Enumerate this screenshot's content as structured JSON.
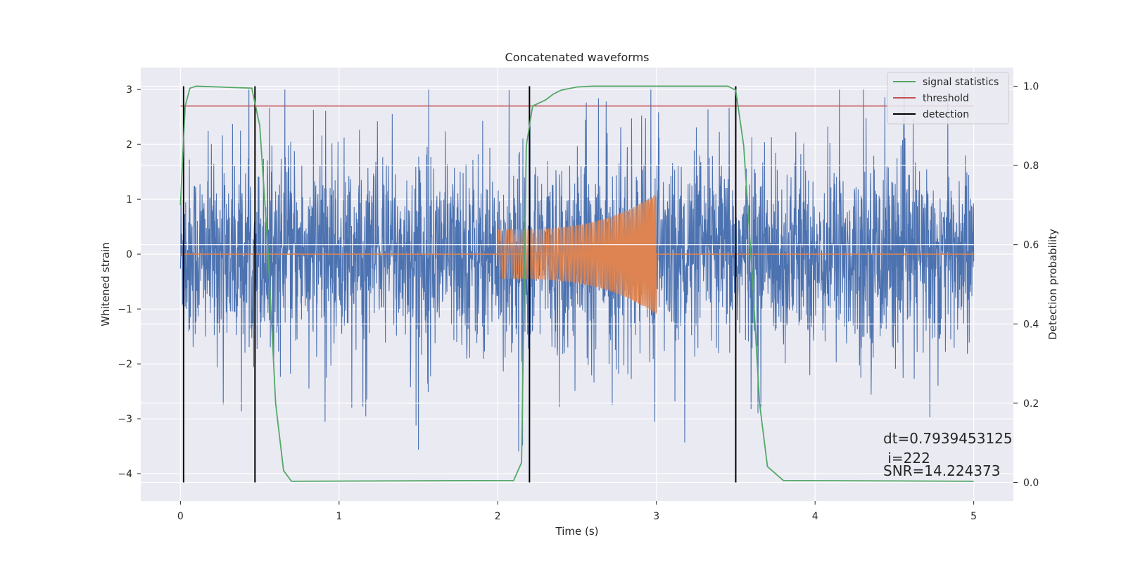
{
  "chart_data": {
    "type": "line",
    "title": "Concatenated waveforms",
    "xlabel": "Time (s)",
    "ylabel": "Whitened strain",
    "ylabel_right": "Detection probability",
    "xlim": [
      -0.25,
      5.25
    ],
    "ylim": [
      -4.5,
      3.4
    ],
    "ylim_right": [
      -0.047,
      1.047
    ],
    "x_ticks": [
      0,
      1,
      2,
      3,
      4,
      5
    ],
    "y_ticks": [
      -4,
      -3,
      -2,
      -1,
      0,
      1,
      2,
      3
    ],
    "y_ticks_right": [
      0.0,
      0.2,
      0.4,
      0.6,
      0.8,
      1.0
    ],
    "x_tick_labels": [
      "0",
      "1",
      "2",
      "3",
      "4",
      "5"
    ],
    "y_tick_labels": [
      "−4",
      "−3",
      "−2",
      "−1",
      "0",
      "1",
      "2",
      "3"
    ],
    "y_tick_labels_right": [
      "0.0",
      "0.2",
      "0.4",
      "0.6",
      "0.8",
      "1.0"
    ],
    "grid": true,
    "legend_placement": "top-right",
    "colors": {
      "strain": "#4c72b0",
      "template": "#dd8452",
      "signal_statistics": "#55a868",
      "threshold": "#c44e52",
      "detection": "#000000",
      "axes_bg": "#eaeaf2"
    },
    "series": [
      {
        "name": "",
        "description": "whitened strain noise (left axis)",
        "x_range": [
          0,
          5
        ],
        "envelope_approx": {
          "typical": [
            -1.3,
            1.3
          ],
          "peak_max": 3.0,
          "peak_min": -4.1
        }
      },
      {
        "name": "",
        "description": "injected chirp waveform (left axis)",
        "segment": [
          2.0,
          3.0
        ],
        "amplitude_start": 0.45,
        "amplitude_end": 1.1
      },
      {
        "name": "signal statistics",
        "axis": "right",
        "x": [
          0,
          0.03,
          0.06,
          0.1,
          0.45,
          0.5,
          0.55,
          0.6,
          0.65,
          0.7,
          2.1,
          2.15,
          2.18,
          2.22,
          2.3,
          2.35,
          2.4,
          2.5,
          2.6,
          3.45,
          3.5,
          3.55,
          3.6,
          3.65,
          3.7,
          3.8,
          5.0
        ],
        "values": [
          0.7,
          0.95,
          0.995,
          1.0,
          0.995,
          0.9,
          0.6,
          0.2,
          0.03,
          0.003,
          0.005,
          0.05,
          0.85,
          0.95,
          0.965,
          0.98,
          0.99,
          0.998,
          1.0,
          1.0,
          0.99,
          0.85,
          0.55,
          0.2,
          0.04,
          0.005,
          0.003
        ]
      },
      {
        "name": "threshold",
        "axis": "right",
        "x": [
          0,
          5
        ],
        "values": [
          0.95,
          0.95
        ]
      },
      {
        "name": "detection",
        "type": "vertical_lines",
        "x": [
          0.02,
          0.47,
          2.2,
          3.5
        ]
      }
    ],
    "legend": [
      "signal statistics",
      "threshold",
      "detection"
    ],
    "annotations": [
      "dt=0.7939453125",
      " i=222",
      "SNR=14.224373"
    ]
  }
}
